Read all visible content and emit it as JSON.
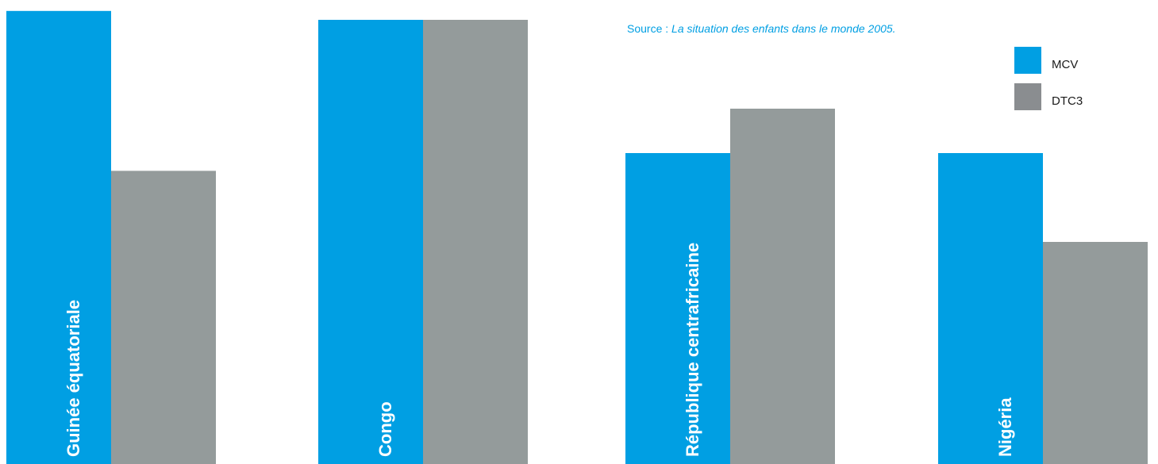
{
  "source": {
    "prefix": "Source : ",
    "work": "La situation des enfants dans le monde 2005."
  },
  "colors": {
    "mcv": "#009fe3",
    "dtc3": "#949b9b",
    "legend_dtc3": "#8a8d90",
    "label_text": "#ffffff"
  },
  "chart_data": {
    "type": "bar",
    "categories": [
      "Guinée équatoriale",
      "Congo",
      "République centrafricaine",
      "Nigéria"
    ],
    "series": [
      {
        "name": "MCV",
        "values": [
          51,
          50,
          35,
          35
        ]
      },
      {
        "name": "DTC3",
        "values": [
          33,
          50,
          40,
          25
        ]
      }
    ],
    "ylim": [
      0,
      50
    ],
    "xlabel": "",
    "ylabel": "",
    "title": "",
    "grid": false,
    "legend_position": "top-right"
  },
  "legend": [
    {
      "label": "MCV",
      "color": "#009fe3"
    },
    {
      "label": "DTC3",
      "color": "#8a8d90"
    }
  ]
}
